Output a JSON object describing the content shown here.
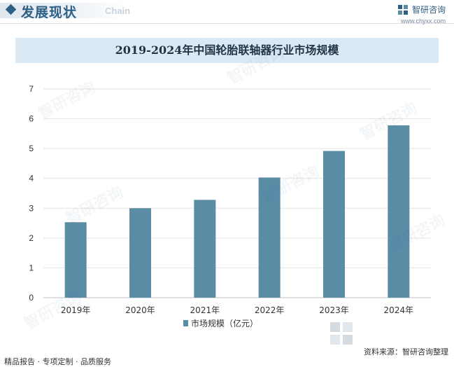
{
  "header": {
    "title": "发展现状",
    "subtitle": "Chain",
    "brand_name": "智研咨询",
    "brand_url": "www.chyxx.com"
  },
  "chart_data": {
    "type": "bar",
    "title": "2019-2024年中国轮胎联轴器行业市场规模",
    "categories": [
      "2019年",
      "2020年",
      "2021年",
      "2022年",
      "2023年",
      "2024年"
    ],
    "series": [
      {
        "name": "市场规模（亿元）",
        "values": [
          2.53,
          3.0,
          3.28,
          4.03,
          4.92,
          5.78
        ]
      }
    ],
    "ylim": [
      0,
      7
    ],
    "yticks": [
      0,
      1,
      2,
      3,
      4,
      5,
      6,
      7
    ],
    "grid": true,
    "legend": "bottom",
    "bar_color": "#5b8ca6"
  },
  "footer": {
    "left": "精品报告 · 专项定制 · 品质服务",
    "right": "资料来源：智研咨询整理",
    "watermark_text": "智研咨询"
  }
}
